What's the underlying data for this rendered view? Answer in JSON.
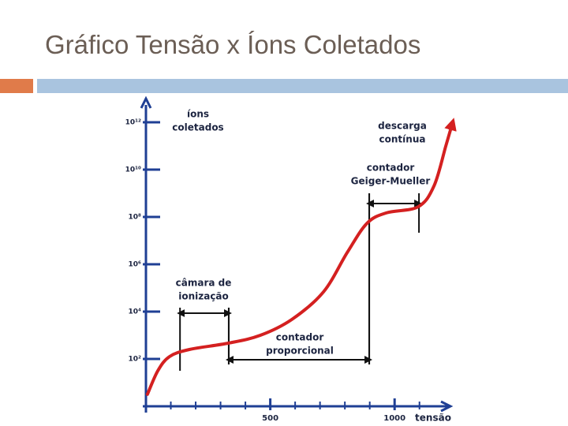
{
  "slide_title": "Gráfico Tensão x Íons Coletados",
  "chart_data": {
    "type": "line",
    "log_y": true,
    "y_label": [
      "íons",
      "coletados"
    ],
    "x_label": "tensão",
    "x": [
      6,
      48,
      95,
      175,
      333,
      460,
      587,
      714,
      810,
      889,
      968,
      1095,
      1159,
      1206,
      1229
    ],
    "series": [
      {
        "name": "íons coletados",
        "color": "#d42020",
        "values": [
          3.2,
          32,
          126,
          251,
          468,
          1000,
          4700,
          68000,
          3200000,
          54000000,
          150000000,
          270000000,
          2100000000,
          100000000000,
          680000000000
        ]
      }
    ],
    "xlim": [
      0,
      1250
    ],
    "ylim": [
      1,
      10000000000000
    ],
    "xticks": [
      500,
      1000
    ],
    "x_minor_ticks": [
      100,
      200,
      300,
      400,
      600,
      700,
      800,
      900,
      1100
    ],
    "yticks": [
      {
        "value": 100,
        "label": "10²"
      },
      {
        "value": 10000,
        "label": "10⁴"
      },
      {
        "value": 1000000,
        "label": "10⁶"
      },
      {
        "value": 100000000,
        "label": "10⁸"
      },
      {
        "value": 10000000000,
        "label": "10¹⁰"
      },
      {
        "value": 1000000000000,
        "label": "10¹²"
      }
    ],
    "regions": [
      {
        "label": [
          "câmara de",
          "ionização"
        ],
        "start": 137,
        "end": 333
      },
      {
        "label": [
          "contador",
          "proporcional"
        ],
        "start": 333,
        "end": 898
      },
      {
        "label": [
          "contador",
          "Geiger-Mueller"
        ],
        "start": 898,
        "end": 1098
      }
    ],
    "annotation": [
      "descarga",
      "contínua"
    ],
    "axis_color": "#1f3f94"
  }
}
